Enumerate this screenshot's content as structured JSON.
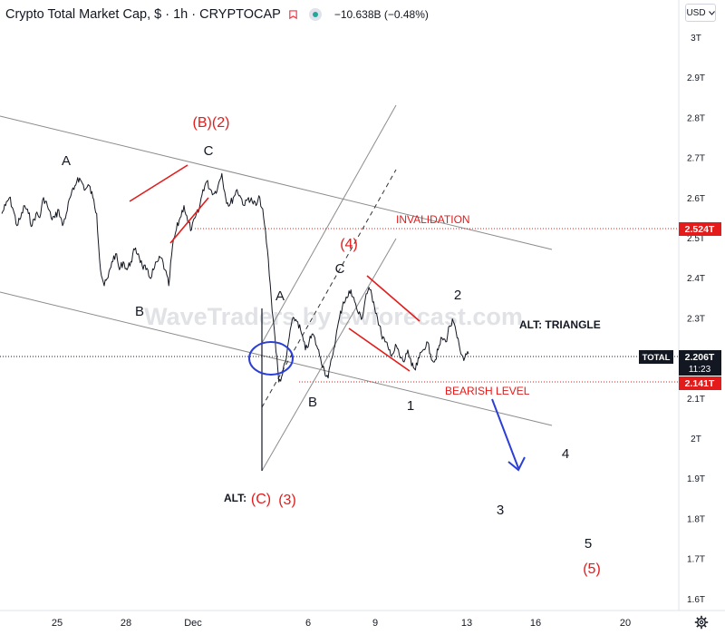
{
  "header": {
    "title": "Crypto Total Market Cap, $ · 1h · CRYPTOCAP",
    "change": "−10.638B (−0.48%)"
  },
  "currency_button": {
    "label": "USD",
    "icon": "chevron-down-icon"
  },
  "settings_icon": "gear-icon",
  "alert_icon": "bell-icon",
  "visibility_icon": "eye-icon",
  "colors": {
    "price": "#131722",
    "wave_red": "#e31b1b",
    "arrow_blue": "#2b3fd6",
    "channel": "#8c8c8c",
    "label_bg_red": "#e31b1b",
    "label_bg_black": "#131722"
  },
  "watermark": "WaveTraders by ewforecast.com",
  "chart_data": {
    "type": "line",
    "title": "Crypto Total Market Cap, $ · 1h · CRYPTOCAP",
    "xlabel": "",
    "ylabel": "",
    "x_ticks": [
      "25",
      "28",
      "Dec",
      "6",
      "9",
      "13",
      "16",
      "20"
    ],
    "y_ticks": [
      "3T",
      "2.9T",
      "2.8T",
      "2.7T",
      "2.6T",
      "2.5T",
      "2.4T",
      "2.3T",
      "2.2T",
      "2.1T",
      "2T",
      "1.9T",
      "1.8T",
      "1.7T",
      "1.6T"
    ],
    "ylim": [
      1.58,
      3.04
    ],
    "grid": false,
    "series": [
      {
        "values": [
          2.56,
          2.58,
          2.6,
          2.57,
          2.53,
          2.55,
          2.58,
          2.56,
          2.53,
          2.56,
          2.55,
          2.6,
          2.58,
          2.55,
          2.55,
          2.57,
          2.53,
          2.56,
          2.6,
          2.62,
          2.65,
          2.64,
          2.62,
          2.63,
          2.6,
          2.56,
          2.42,
          2.38,
          2.4,
          2.44,
          2.46,
          2.42,
          2.44,
          2.42,
          2.44,
          2.47,
          2.46,
          2.43,
          2.42,
          2.4,
          2.42,
          2.44,
          2.45,
          2.42,
          2.38,
          2.48,
          2.52,
          2.55,
          2.58,
          2.54,
          2.52,
          2.55,
          2.57,
          2.62,
          2.64,
          2.62,
          2.61,
          2.63,
          2.66,
          2.6,
          2.58,
          2.6,
          2.62,
          2.6,
          2.58,
          2.6,
          2.59,
          2.58,
          2.6,
          2.55,
          2.47,
          2.35,
          2.25,
          2.14,
          2.16,
          2.2,
          2.27,
          2.3,
          2.29,
          2.26,
          2.22,
          2.24,
          2.26,
          2.23,
          2.2,
          2.17,
          2.15,
          2.2,
          2.25,
          2.3,
          2.34,
          2.35,
          2.37,
          2.34,
          2.31,
          2.3,
          2.36,
          2.37,
          2.34,
          2.3,
          2.26,
          2.24,
          2.22,
          2.21,
          2.23,
          2.2,
          2.19,
          2.22,
          2.18,
          2.17,
          2.2,
          2.22,
          2.24,
          2.21,
          2.19,
          2.22,
          2.25,
          2.24,
          2.28,
          2.29,
          2.25,
          2.21,
          2.2,
          2.21
        ],
        "color": "#131722"
      }
    ],
    "price_labels": [
      {
        "text": "2.524T",
        "value": 2.524,
        "style": "red"
      },
      {
        "text": "2.206T",
        "value": 2.206,
        "style": "black",
        "sub": "11:23",
        "tag": "TOTAL"
      },
      {
        "text": "2.141T",
        "value": 2.141,
        "style": "red"
      }
    ],
    "horizontal_levels": [
      {
        "label": "INVALIDATION",
        "value": 2.524,
        "color": "#e31b1b"
      },
      {
        "label": "BEARISH LEVEL",
        "value": 2.141,
        "color": "#e31b1b"
      },
      {
        "label": "",
        "value": 2.206,
        "color": "#131722"
      }
    ],
    "annotations": [
      {
        "text": "A",
        "color": "#131722"
      },
      {
        "text": "B",
        "color": "#131722"
      },
      {
        "text": "C",
        "color": "#131722"
      },
      {
        "text": "(B)(2)",
        "color": "#e31b1b"
      },
      {
        "text": "A",
        "color": "#131722"
      },
      {
        "text": "B",
        "color": "#131722"
      },
      {
        "text": "C",
        "color": "#131722"
      },
      {
        "text": "(4)",
        "color": "#e31b1b"
      },
      {
        "text": "1",
        "color": "#131722"
      },
      {
        "text": "2",
        "color": "#131722"
      },
      {
        "text": "ALT: TRIANGLE",
        "color": "#131722"
      },
      {
        "text": "ALT:",
        "color": "#131722"
      },
      {
        "text": "(C)",
        "color": "#e31b1b"
      },
      {
        "text": "(3)",
        "color": "#e31b1b"
      },
      {
        "text": "3",
        "color": "#131722"
      },
      {
        "text": "4",
        "color": "#131722"
      },
      {
        "text": "5",
        "color": "#131722"
      },
      {
        "text": "(5)",
        "color": "#e31b1b"
      }
    ]
  }
}
